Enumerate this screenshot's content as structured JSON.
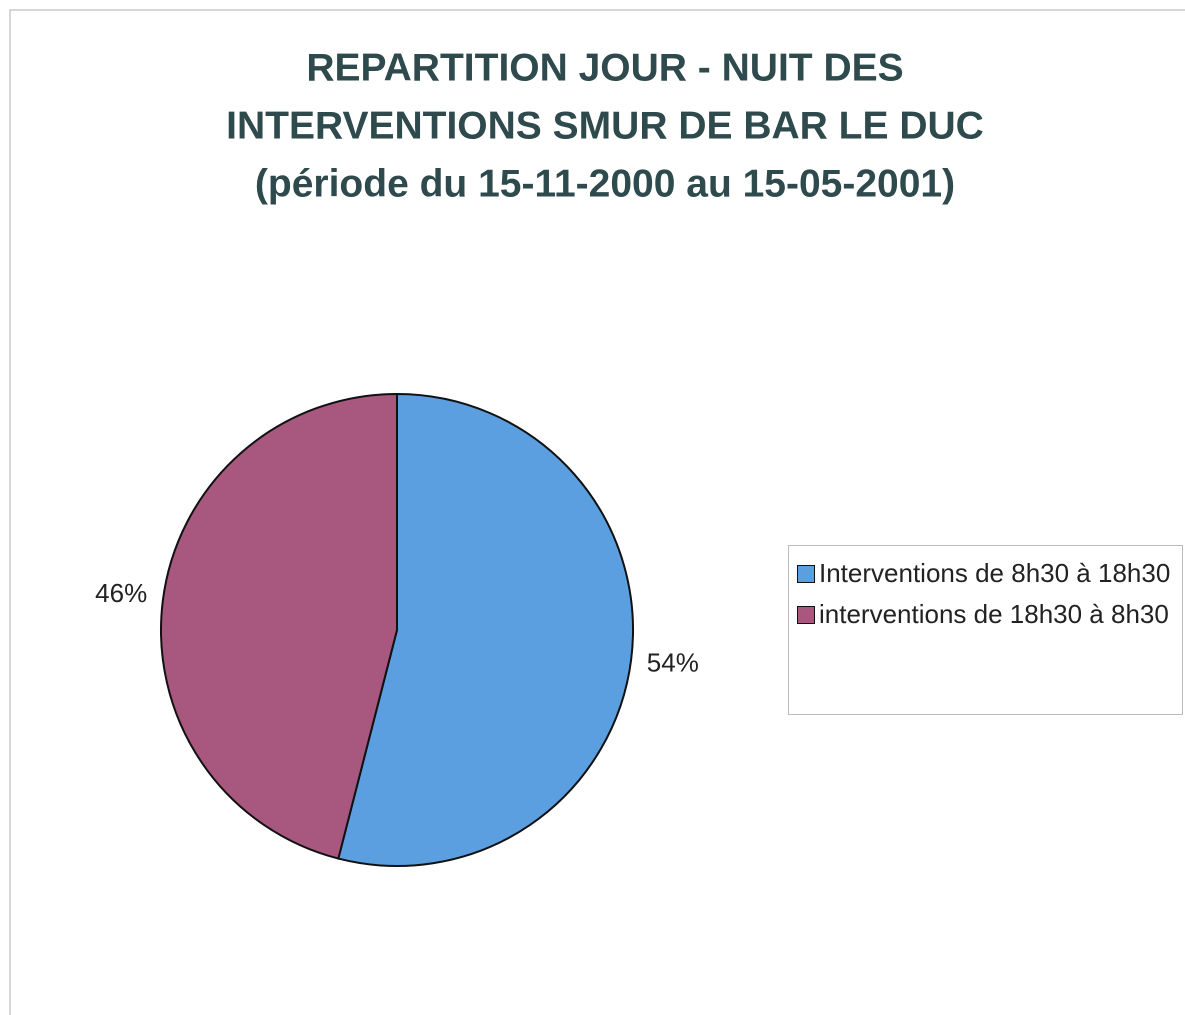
{
  "chart_data": {
    "type": "pie",
    "title": [
      "REPARTITION JOUR - NUIT  DES",
      "INTERVENTIONS SMUR DE BAR LE DUC",
      "(période du 15-11-2000 au 15-05-2001)"
    ],
    "categories": [
      "Interventions de 8h30 à 18h30",
      "interventions de 18h30 à 8h30"
    ],
    "values": [
      54,
      46
    ],
    "value_labels": [
      "54%",
      "46%"
    ],
    "colors": [
      "#5b9fe0",
      "#a8577f"
    ],
    "legend": "right"
  }
}
